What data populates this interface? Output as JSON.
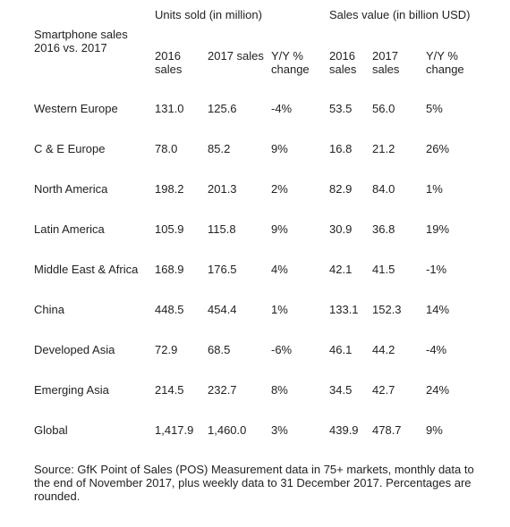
{
  "title": "Smartphone sales 2016 vs. 2017",
  "table": {
    "group_headers": [
      "Units sold (in million)",
      "Sales value (in billion USD)"
    ],
    "columns": [
      "2016 sales",
      "2017 sales",
      "Y/Y % change",
      "2016 sales",
      "2017 sales",
      "Y/Y % change"
    ],
    "rows": [
      [
        "Western Europe",
        "131.0",
        "125.6",
        "-4%",
        "53.5",
        "56.0",
        "5%"
      ],
      [
        "C & E Europe",
        "78.0",
        "85.2",
        "9%",
        "16.8",
        "21.2",
        "26%"
      ],
      [
        "North America",
        "198.2",
        "201.3",
        "2%",
        "82.9",
        "84.0",
        "1%"
      ],
      [
        "Latin America",
        "105.9",
        "115.8",
        "9%",
        "30.9",
        "36.8",
        "19%"
      ],
      [
        "Middle East & Africa",
        "168.9",
        "176.5",
        "4%",
        "42.1",
        "41.5",
        "-1%"
      ],
      [
        "China",
        "448.5",
        "454.4",
        "1%",
        "133.1",
        "152.3",
        "14%"
      ],
      [
        "Developed Asia",
        "72.9",
        "68.5",
        "-6%",
        "46.1",
        "44.2",
        "-4%"
      ],
      [
        "Emerging Asia",
        "214.5",
        "232.7",
        "8%",
        "34.5",
        "42.7",
        "24%"
      ],
      [
        "Global",
        "1,417.9",
        "1,460.0",
        "3%",
        "439.9",
        "478.7",
        "9%"
      ]
    ]
  },
  "source": "Source: GfK Point of Sales (POS) Measurement data in 75+ markets, monthly data to the end of November 2017, plus weekly data to 31 December 2017. Percentages are rounded."
}
